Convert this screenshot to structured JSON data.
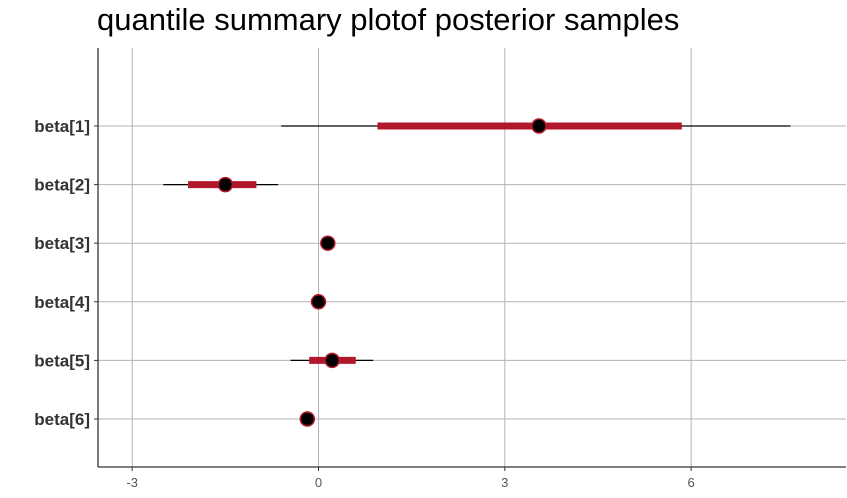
{
  "chart_data": {
    "type": "interval",
    "title": "quantile summary plotof posterior samples",
    "xlabel": "",
    "ylabel": "",
    "xlim": [
      -3.5,
      8.5
    ],
    "x_ticks": [
      -3,
      0,
      3,
      6
    ],
    "x_tick_labels": [
      "-3",
      "0",
      "3",
      "6"
    ],
    "grid": true,
    "colors": {
      "inner_interval": "#b2182b",
      "outer_interval": "#000000",
      "point": "#000000",
      "point_outline": "#b2182b",
      "grid": "#b3b3b3",
      "axis": "#333333"
    },
    "parameters": [
      {
        "label": "beta[1]",
        "outer_low": -0.6,
        "inner_low": 0.95,
        "point": 3.55,
        "inner_high": 5.85,
        "outer_high": 7.6
      },
      {
        "label": "beta[2]",
        "outer_low": -2.5,
        "inner_low": -2.1,
        "point": -1.5,
        "inner_high": -1.0,
        "outer_high": -0.65
      },
      {
        "label": "beta[3]",
        "outer_low": 0.05,
        "inner_low": 0.08,
        "point": 0.15,
        "inner_high": 0.22,
        "outer_high": 0.25
      },
      {
        "label": "beta[4]",
        "outer_low": -0.08,
        "inner_low": -0.05,
        "point": 0.0,
        "inner_high": 0.05,
        "outer_high": 0.08
      },
      {
        "label": "beta[5]",
        "outer_low": -0.45,
        "inner_low": -0.15,
        "point": 0.22,
        "inner_high": 0.6,
        "outer_high": 0.88
      },
      {
        "label": "beta[6]",
        "outer_low": -0.3,
        "inner_low": -0.25,
        "point": -0.18,
        "inner_high": -0.12,
        "outer_high": -0.08
      }
    ]
  }
}
